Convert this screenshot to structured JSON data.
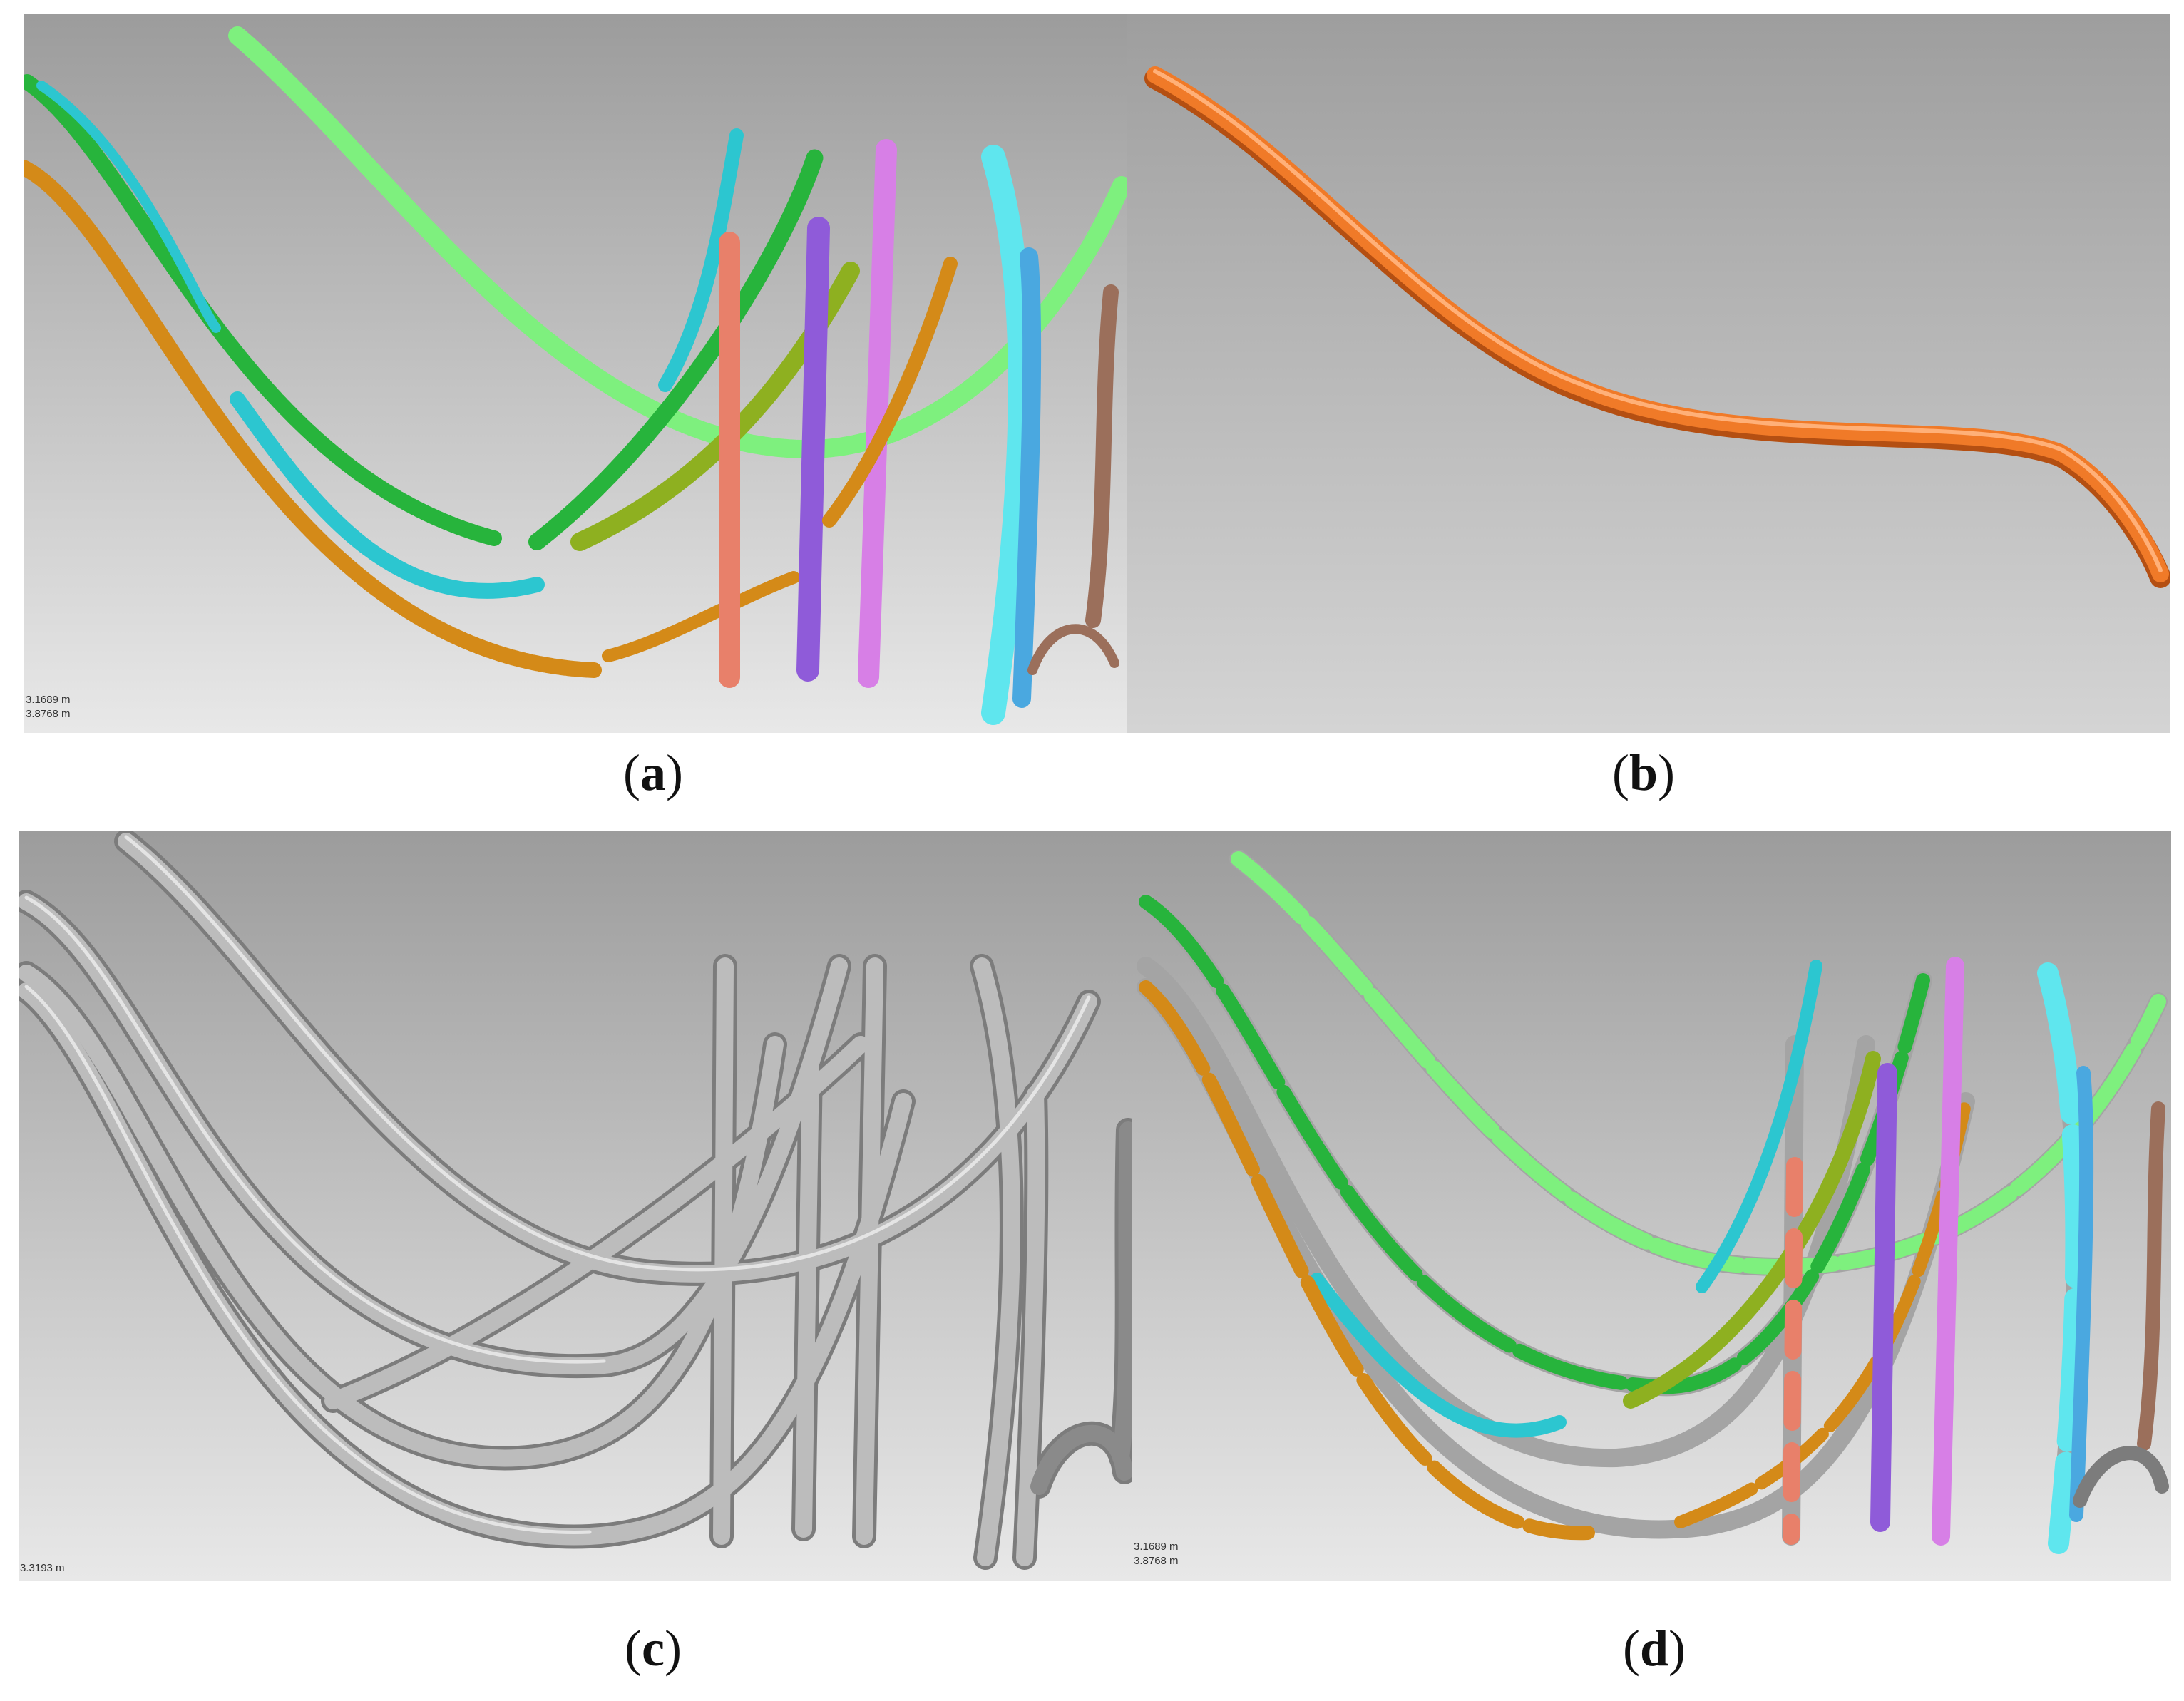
{
  "figure": {
    "panels": [
      {
        "id": "a",
        "label": "a",
        "content": "colored point-cloud pipe segments"
      },
      {
        "id": "b",
        "label": "b",
        "content": "single fitted orange pipe"
      },
      {
        "id": "c",
        "label": "c",
        "content": "grey fitted pipe models"
      },
      {
        "id": "d",
        "label": "d",
        "content": "overlay of point clouds and fitted pipes"
      }
    ],
    "scale_a": [
      "3.1689 m",
      "3.8768 m"
    ],
    "scale_c": [
      "3.3193 m"
    ],
    "scale_d": [
      "3.1689 m",
      "3.8768 m"
    ],
    "colors": {
      "background_top": "#9c9c9c",
      "background_bottom": "#e6e6e6",
      "pipe_grey": "#9a9a9a",
      "pipe_orange": "#f07a28",
      "light_green": "#7ef07e",
      "green": "#27b43c",
      "cyan": "#2cc6d0",
      "olive": "#8eb020",
      "purple": "#8f5bd9",
      "pink": "#d77fe6",
      "salmon": "#e8806a",
      "amber": "#d48a18",
      "brown": "#9b6f5b",
      "light_cyan": "#5fe6ee",
      "sky": "#4aa8e0"
    }
  }
}
